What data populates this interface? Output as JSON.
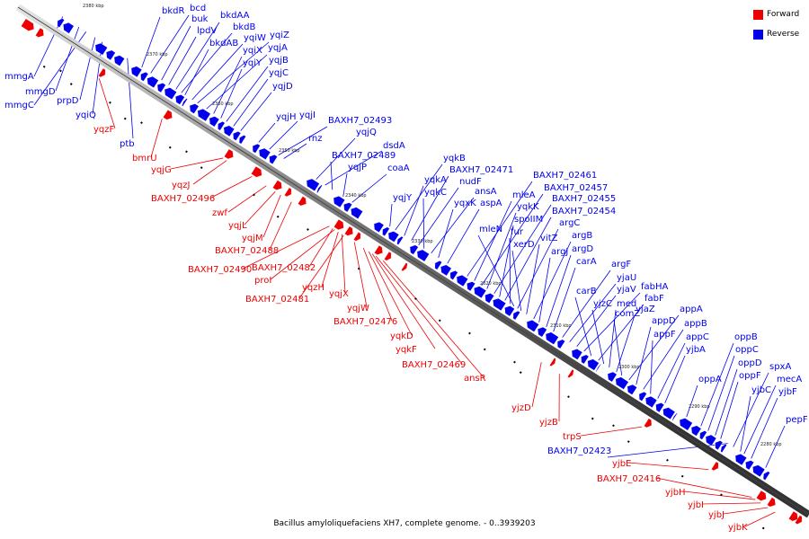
{
  "caption": "Bacillus amyloliquefaciens XH7, complete genome. - 0..3939203",
  "legend": {
    "forward_label": "Forward",
    "reverse_label": "Reverse",
    "forward_color": "#ee0000",
    "reverse_color": "#0000ee"
  },
  "ticks": [
    "2380 kbp",
    "2370 kbp",
    "2360 kbp",
    "2350 kbp",
    "2340 kbp",
    "2330 kbp",
    "2320 kbp",
    "2310 kbp",
    "2300 kbp",
    "2290 kbp",
    "2280 kbp"
  ],
  "reverse_labels": [
    "bkdR",
    "bcd",
    "buk",
    "lpdV",
    "bkdAA",
    "bkdB",
    "bkdAB",
    "yqiW",
    "yqiZ",
    "yqjA",
    "yqiX",
    "yqiY",
    "yqjB",
    "yqjC",
    "yqjD",
    "mmgA",
    "mmgD",
    "mmgC",
    "prpD",
    "yqiQ",
    "ptb",
    "yqjH",
    "yqjI",
    "BAXH7_02493",
    "rnz",
    "yqjQ",
    "dsdA",
    "BAXH7_02489",
    "yqjP",
    "coaA",
    "yqjY",
    "yqkB",
    "yqkA",
    "BAXH7_02471",
    "nudF",
    "yqkC",
    "ansA",
    "yqxK",
    "aspA",
    "BAXH7_02461",
    "mleA",
    "BAXH7_02457",
    "yqkK",
    "BAXH7_02455",
    "spoIIM",
    "BAXH7_02454",
    "fur",
    "argC",
    "mleN",
    "xerD",
    "vitZ",
    "argB",
    "argJ",
    "argD",
    "carA",
    "argF",
    "yjaU",
    "yjaV",
    "fabHA",
    "carB",
    "fabF",
    "yjzC",
    "med",
    "yjaZ",
    "comZ",
    "appA",
    "appD",
    "appB",
    "appF",
    "appC",
    "yjbA",
    "oppB",
    "oppC",
    "oppD",
    "oppA",
    "oppF",
    "spxA",
    "mecA",
    "yjbC",
    "yjbF",
    "pepF",
    "BAXH7_02423"
  ],
  "forward_labels": [
    "yqzF",
    "bmrU",
    "yqjG",
    "yqzJ",
    "BAXH7_02496",
    "zwf",
    "yqjL",
    "yqjM",
    "BAXH7_02488",
    "BAXH7_02490",
    "BAXH7_02482",
    "proI",
    "yqzH",
    "yqjX",
    "BAXH7_02481",
    "yqjW",
    "BAXH7_02476",
    "yqkD",
    "yqkF",
    "BAXH7_02469",
    "ansR",
    "yjzD",
    "yjzB",
    "trpS",
    "yjbE",
    "BAXH7_02416",
    "yjbH",
    "yjbI",
    "yjbJ",
    "yjbK"
  ]
}
